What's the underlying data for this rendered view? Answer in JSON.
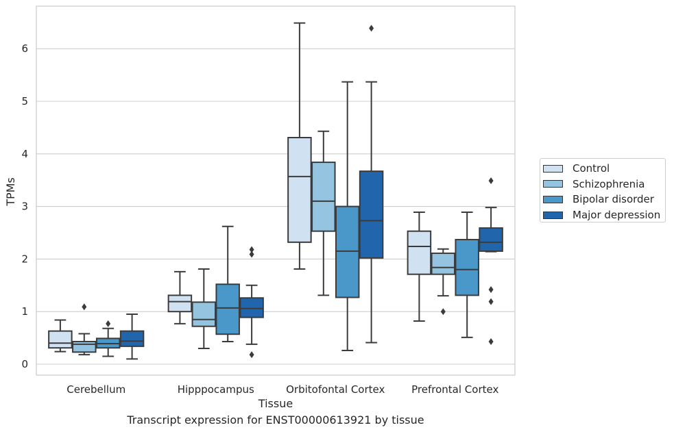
{
  "chart_data": {
    "type": "box",
    "title": "",
    "caption": "Transcript expression for ENST00000613921 by tissue",
    "xlabel": "Tissue",
    "ylabel": "TPMs",
    "ylim": [
      -0.2,
      6.8
    ],
    "yticks": [
      0,
      1,
      2,
      3,
      4,
      5,
      6
    ],
    "grid": "horizontal",
    "legend_position": "right",
    "categories": [
      "Cerebellum",
      "Hipppocampus",
      "Orbitofontal Cortex",
      "Prefrontal Cortex"
    ],
    "series": [
      {
        "name": "Control",
        "color": "#d0e1f2",
        "boxes": [
          {
            "whislo": 0.24,
            "q1": 0.31,
            "med": 0.4,
            "q3": 0.63,
            "whishi": 0.84,
            "fliers": []
          },
          {
            "whislo": 0.77,
            "q1": 1.0,
            "med": 1.19,
            "q3": 1.31,
            "whishi": 1.76,
            "fliers": []
          },
          {
            "whislo": 1.81,
            "q1": 2.32,
            "med": 3.57,
            "q3": 4.31,
            "whishi": 6.49,
            "fliers": []
          },
          {
            "whislo": 0.82,
            "q1": 1.71,
            "med": 2.24,
            "q3": 2.53,
            "whishi": 2.89,
            "fliers": []
          }
        ]
      },
      {
        "name": "Schizophrenia",
        "color": "#94c4df",
        "boxes": [
          {
            "whislo": 0.18,
            "q1": 0.23,
            "med": 0.38,
            "q3": 0.43,
            "whishi": 0.58,
            "fliers": [
              1.09
            ]
          },
          {
            "whislo": 0.3,
            "q1": 0.72,
            "med": 0.85,
            "q3": 1.18,
            "whishi": 1.81,
            "fliers": []
          },
          {
            "whislo": 1.31,
            "q1": 2.53,
            "med": 3.1,
            "q3": 3.84,
            "whishi": 4.43,
            "fliers": []
          },
          {
            "whislo": 1.3,
            "q1": 1.71,
            "med": 1.84,
            "q3": 2.11,
            "whishi": 2.19,
            "fliers": [
              1.0
            ]
          }
        ]
      },
      {
        "name": "Bipolar disorder",
        "color": "#4a98c9",
        "boxes": [
          {
            "whislo": 0.15,
            "q1": 0.31,
            "med": 0.39,
            "q3": 0.49,
            "whishi": 0.68,
            "fliers": [
              0.77
            ]
          },
          {
            "whislo": 0.43,
            "q1": 0.57,
            "med": 1.07,
            "q3": 1.52,
            "whishi": 2.62,
            "fliers": []
          },
          {
            "whislo": 0.26,
            "q1": 1.27,
            "med": 2.15,
            "q3": 3.0,
            "whishi": 5.37,
            "fliers": []
          },
          {
            "whislo": 0.51,
            "q1": 1.31,
            "med": 1.8,
            "q3": 2.37,
            "whishi": 2.89,
            "fliers": []
          }
        ]
      },
      {
        "name": "Major depression",
        "color": "#2166ac",
        "boxes": [
          {
            "whislo": 0.1,
            "q1": 0.34,
            "med": 0.44,
            "q3": 0.63,
            "whishi": 0.95,
            "fliers": []
          },
          {
            "whislo": 0.38,
            "q1": 0.89,
            "med": 1.06,
            "q3": 1.26,
            "whishi": 1.5,
            "fliers": [
              0.18,
              2.09,
              2.18
            ]
          },
          {
            "whislo": 0.41,
            "q1": 2.02,
            "med": 2.73,
            "q3": 3.67,
            "whishi": 5.37,
            "fliers": [
              6.39
            ]
          },
          {
            "whislo": 2.14,
            "q1": 2.15,
            "med": 2.32,
            "q3": 2.59,
            "whishi": 2.98,
            "fliers": [
              0.43,
              1.19,
              1.42,
              3.49
            ]
          }
        ]
      }
    ]
  }
}
